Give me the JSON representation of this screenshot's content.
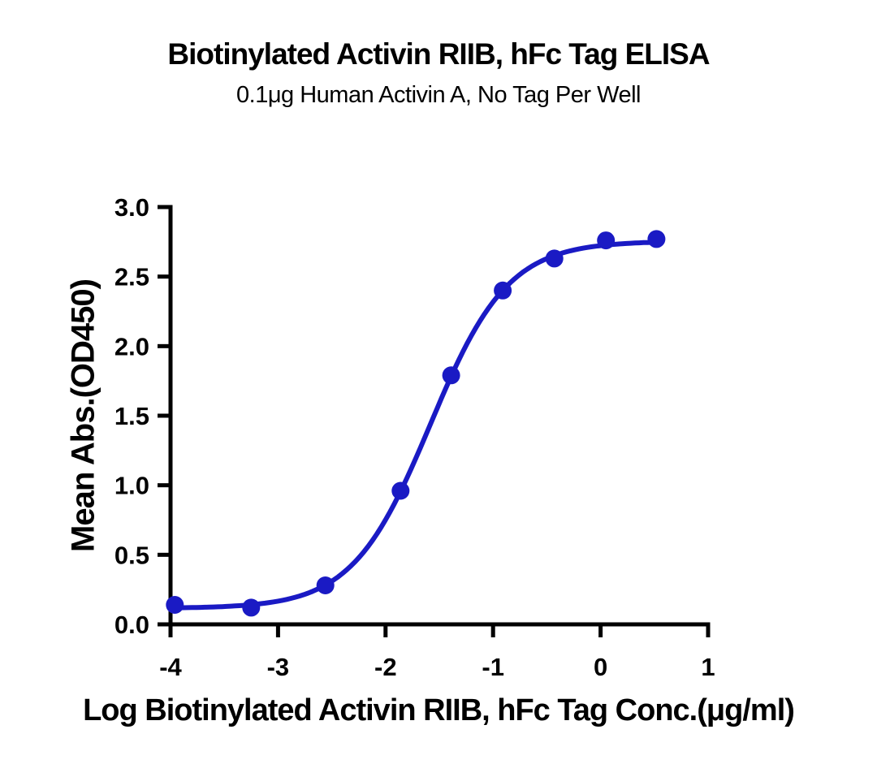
{
  "chart_data": {
    "type": "scatter",
    "title": "Biotinylated Activin RIIB, hFc Tag ELISA",
    "subtitle": "0.1μg Human Activin A, No Tag Per Well",
    "xlabel": "Log Biotinylated Activin RIIB, hFc Tag Conc.(μg/ml)",
    "ylabel": "Mean Abs.(OD450)",
    "xlim": [
      -4,
      1
    ],
    "ylim": [
      0,
      3
    ],
    "x_ticks": [
      -4,
      -3,
      -2,
      -1,
      0,
      1
    ],
    "y_ticks": [
      0.0,
      0.5,
      1.0,
      1.5,
      2.0,
      2.5,
      3.0
    ],
    "grid": false,
    "legend": "none",
    "colors": {
      "curve": "#1A1AC4",
      "axis": "#000000",
      "text": "#000000",
      "background": "#FFFFFF"
    },
    "series": [
      {
        "name": "Biotinylated Activin RIIB, hFc Tag",
        "marker": "circle",
        "color": "#1A1AC4",
        "points": [
          {
            "x": -3.96,
            "y": 0.14
          },
          {
            "x": -3.25,
            "y": 0.12
          },
          {
            "x": -2.56,
            "y": 0.28
          },
          {
            "x": -1.86,
            "y": 0.96
          },
          {
            "x": -1.39,
            "y": 1.79
          },
          {
            "x": -0.91,
            "y": 2.4
          },
          {
            "x": -0.43,
            "y": 2.63
          },
          {
            "x": 0.05,
            "y": 2.76
          },
          {
            "x": 0.52,
            "y": 2.77
          }
        ],
        "fit_curve": {
          "model": "4PL",
          "bottom": 0.115,
          "top": 2.755,
          "logEC50": -1.585,
          "hillslope": 1.2,
          "x_start": -4.0,
          "x_end": 0.52
        }
      }
    ]
  }
}
